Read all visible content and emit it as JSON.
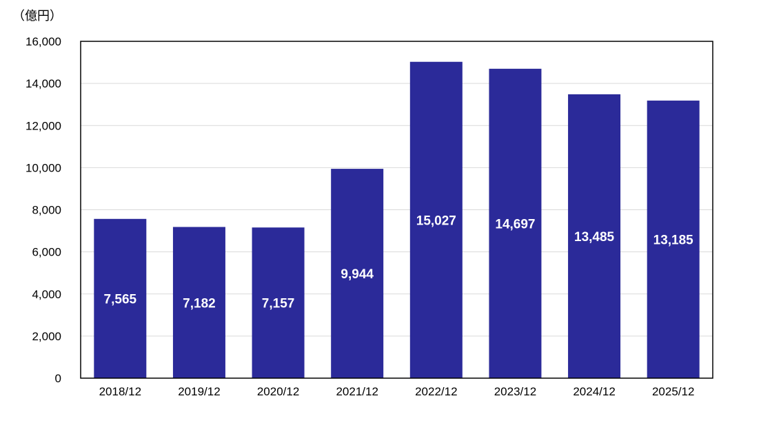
{
  "chart_data": {
    "type": "bar",
    "unit_label": "（億円）",
    "categories": [
      "2018/12",
      "2019/12",
      "2020/12",
      "2021/12",
      "2022/12",
      "2023/12",
      "2024/12",
      "2025/12"
    ],
    "series": [
      {
        "values": [
          7565,
          7182,
          7157,
          9944,
          15027,
          14697,
          13485,
          13185
        ]
      }
    ],
    "value_labels": [
      "7,565",
      "7,182",
      "7,157",
      "9,944",
      "15,027",
      "14,697",
      "13,485",
      "13,185"
    ],
    "ylim": [
      0,
      16000
    ],
    "yticks": [
      0,
      2000,
      4000,
      6000,
      8000,
      10000,
      12000,
      14000,
      16000
    ],
    "ytick_labels": [
      "0",
      "2,000",
      "4,000",
      "6,000",
      "8,000",
      "10,000",
      "12,000",
      "14,000",
      "16,000"
    ],
    "grid": true,
    "colors": {
      "bar": "#2b2a99",
      "grid": "#d9d9d9",
      "axis": "#000000",
      "label": "#ffffff"
    }
  }
}
